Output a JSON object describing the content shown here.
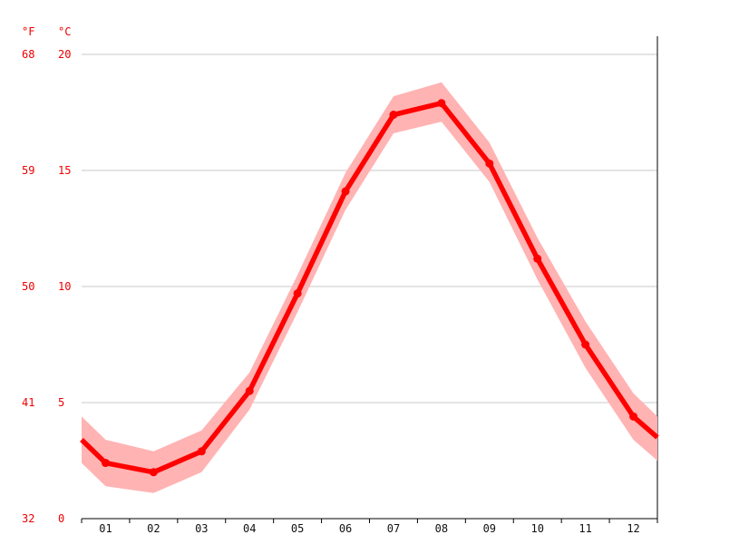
{
  "chart_data": {
    "type": "line",
    "unit_labels": {
      "fahrenheit": "°F",
      "celsius": "°C"
    },
    "categories": [
      "01",
      "02",
      "03",
      "04",
      "05",
      "06",
      "07",
      "08",
      "09",
      "10",
      "11",
      "12"
    ],
    "series": [
      {
        "values": [
          2.4,
          2.0,
          2.9,
          5.5,
          9.7,
          14.1,
          17.4,
          17.9,
          15.3,
          11.2,
          7.5,
          4.4
        ],
        "color": "#ff0000",
        "band_color": "#ffb3b3"
      }
    ],
    "band": {
      "upper": [
        3.4,
        2.9,
        3.8,
        6.3,
        10.5,
        14.9,
        18.2,
        18.8,
        16.2,
        12.1,
        8.5,
        5.4
      ],
      "lower": [
        1.4,
        1.1,
        2.0,
        4.7,
        8.9,
        13.3,
        16.6,
        17.1,
        14.5,
        10.3,
        6.5,
        3.4
      ]
    },
    "edge_values": {
      "start": {
        "value": 3.4,
        "upper": 4.4,
        "lower": 2.4
      },
      "end": {
        "value": 3.5,
        "upper": 4.4,
        "lower": 2.5
      }
    },
    "y_ticks_celsius": [
      "0",
      "5",
      "10",
      "15",
      "20"
    ],
    "y_ticks_fahrenheit": [
      "32",
      "41",
      "50",
      "59",
      "68"
    ],
    "y_tick_values": [
      0,
      5,
      10,
      15,
      20
    ],
    "ylim": [
      0,
      20
    ],
    "grid": true,
    "axis_color": "#ee0000"
  }
}
